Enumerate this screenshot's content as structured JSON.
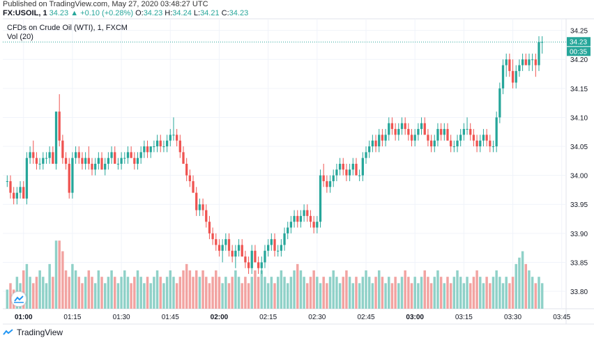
{
  "header": {
    "published": "Published on TradingView.com, May 27, 2020 03:48:27 UTC",
    "symbol": "FX:USOIL, 1",
    "last": "34.23",
    "change": "▲ +0.10 (+0.28%)",
    "o_label": "O:",
    "o_value": "34.23",
    "h_label": "H:",
    "h_value": "34.24",
    "l_label": "L:",
    "l_value": "34.21",
    "c_label": "C:",
    "c_value": "34.23"
  },
  "legend": {
    "title": "CFDs on Crude Oil (WTI), 1, FXCM",
    "volume": "Vol (20)"
  },
  "footer": {
    "brand": "TradingView"
  },
  "colors": {
    "up": "#26a69a",
    "down": "#ef5350",
    "up_vol": "#8fd1c8",
    "down_vol": "#f2a3a1",
    "grid": "#f0f3fa",
    "price_line": "#26a69a"
  },
  "chart_data": {
    "type": "candlestick",
    "title": "CFDs on Crude Oil (WTI), 1, FXCM",
    "interval": "1 minute",
    "ylim": [
      33.77,
      34.27
    ],
    "y_ticks": [
      "34.25",
      "34.20",
      "34.15",
      "34.10",
      "34.05",
      "34.00",
      "33.95",
      "33.90",
      "33.85",
      "33.80"
    ],
    "x_ticks": [
      {
        "label": "01:00",
        "index": 5,
        "bold": true
      },
      {
        "label": "01:15",
        "index": 20,
        "bold": false
      },
      {
        "label": "01:30",
        "index": 35,
        "bold": false
      },
      {
        "label": "01:45",
        "index": 50,
        "bold": false
      },
      {
        "label": "02:00",
        "index": 65,
        "bold": true
      },
      {
        "label": "02:15",
        "index": 80,
        "bold": false
      },
      {
        "label": "02:30",
        "index": 95,
        "bold": false
      },
      {
        "label": "02:45",
        "index": 110,
        "bold": false
      },
      {
        "label": "03:00",
        "index": 125,
        "bold": true
      },
      {
        "label": "03:15",
        "index": 140,
        "bold": false
      },
      {
        "label": "03:30",
        "index": 155,
        "bold": false
      },
      {
        "label": "03:45",
        "index": 170,
        "bold": false
      }
    ],
    "last_price": "34.23",
    "countdown": "00:35",
    "candles": [
      [
        33.99,
        34.0,
        33.98,
        33.99
      ],
      [
        33.99,
        34.0,
        33.96,
        33.97
      ],
      [
        33.97,
        33.98,
        33.95,
        33.96
      ],
      [
        33.96,
        33.98,
        33.95,
        33.97
      ],
      [
        33.97,
        33.99,
        33.96,
        33.98
      ],
      [
        33.98,
        33.99,
        33.96,
        33.96
      ],
      [
        33.96,
        34.04,
        33.95,
        34.03
      ],
      [
        34.03,
        34.05,
        34.02,
        34.04
      ],
      [
        34.04,
        34.06,
        34.02,
        34.03
      ],
      [
        34.03,
        34.04,
        34.01,
        34.02
      ],
      [
        34.02,
        34.03,
        34.01,
        34.02
      ],
      [
        34.02,
        34.04,
        34.01,
        34.03
      ],
      [
        34.03,
        34.04,
        34.02,
        34.03
      ],
      [
        34.03,
        34.05,
        34.02,
        34.04
      ],
      [
        34.04,
        34.05,
        34.02,
        34.02
      ],
      [
        34.02,
        34.11,
        34.01,
        34.11
      ],
      [
        34.11,
        34.14,
        34.05,
        34.06
      ],
      [
        34.06,
        34.07,
        34.02,
        34.03
      ],
      [
        34.03,
        34.04,
        34.01,
        34.02
      ],
      [
        34.02,
        34.03,
        33.96,
        33.97
      ],
      [
        33.97,
        34.04,
        33.96,
        34.03
      ],
      [
        34.03,
        34.05,
        34.02,
        34.04
      ],
      [
        34.04,
        34.05,
        34.02,
        34.03
      ],
      [
        34.03,
        34.04,
        34.01,
        34.02
      ],
      [
        34.02,
        34.04,
        34.01,
        34.03
      ],
      [
        34.03,
        34.05,
        34.01,
        34.02
      ],
      [
        34.02,
        34.03,
        34.0,
        34.01
      ],
      [
        34.01,
        34.03,
        34.0,
        34.02
      ],
      [
        34.02,
        34.04,
        34.01,
        34.03
      ],
      [
        34.03,
        34.04,
        34.01,
        34.01
      ],
      [
        34.01,
        34.03,
        34.0,
        34.02
      ],
      [
        34.02,
        34.04,
        34.01,
        34.03
      ],
      [
        34.03,
        34.05,
        34.02,
        34.04
      ],
      [
        34.04,
        34.05,
        34.02,
        34.02
      ],
      [
        34.02,
        34.03,
        34.01,
        34.02
      ],
      [
        34.02,
        34.04,
        34.01,
        34.03
      ],
      [
        34.03,
        34.04,
        34.02,
        34.03
      ],
      [
        34.03,
        34.05,
        34.02,
        34.04
      ],
      [
        34.04,
        34.05,
        34.03,
        34.03
      ],
      [
        34.03,
        34.04,
        34.01,
        34.02
      ],
      [
        34.02,
        34.04,
        34.01,
        34.03
      ],
      [
        34.03,
        34.05,
        34.02,
        34.04
      ],
      [
        34.04,
        34.06,
        34.03,
        34.05
      ],
      [
        34.05,
        34.06,
        34.03,
        34.04
      ],
      [
        34.04,
        34.05,
        34.03,
        34.05
      ],
      [
        34.05,
        34.06,
        34.04,
        34.05
      ],
      [
        34.05,
        34.07,
        34.04,
        34.06
      ],
      [
        34.06,
        34.07,
        34.04,
        34.05
      ],
      [
        34.05,
        34.06,
        34.04,
        34.05
      ],
      [
        34.05,
        34.07,
        34.04,
        34.06
      ],
      [
        34.06,
        34.08,
        34.05,
        34.07
      ],
      [
        34.07,
        34.1,
        34.06,
        34.07
      ],
      [
        34.07,
        34.08,
        34.05,
        34.06
      ],
      [
        34.06,
        34.07,
        34.03,
        34.04
      ],
      [
        34.04,
        34.05,
        34.02,
        34.02
      ],
      [
        34.02,
        34.03,
        33.99,
        34.0
      ],
      [
        34.0,
        34.01,
        33.98,
        33.99
      ],
      [
        33.99,
        34.0,
        33.97,
        33.97
      ],
      [
        33.97,
        33.98,
        33.93,
        33.94
      ],
      [
        33.94,
        33.96,
        33.93,
        33.95
      ],
      [
        33.95,
        33.96,
        33.93,
        33.94
      ],
      [
        33.94,
        33.95,
        33.91,
        33.92
      ],
      [
        33.92,
        33.93,
        33.89,
        33.9
      ],
      [
        33.9,
        33.91,
        33.88,
        33.89
      ],
      [
        33.89,
        33.9,
        33.87,
        33.88
      ],
      [
        33.88,
        33.89,
        33.86,
        33.87
      ],
      [
        33.87,
        33.89,
        33.85,
        33.88
      ],
      [
        33.88,
        33.9,
        33.87,
        33.89
      ],
      [
        33.89,
        33.9,
        33.86,
        33.87
      ],
      [
        33.87,
        33.88,
        33.85,
        33.86
      ],
      [
        33.86,
        33.88,
        33.84,
        33.87
      ],
      [
        33.87,
        33.89,
        33.86,
        33.88
      ],
      [
        33.88,
        33.89,
        33.86,
        33.86
      ],
      [
        33.86,
        33.87,
        33.84,
        33.85
      ],
      [
        33.85,
        33.86,
        33.83,
        33.84
      ],
      [
        33.84,
        33.88,
        33.83,
        33.87
      ],
      [
        33.87,
        33.88,
        33.85,
        33.85
      ],
      [
        33.85,
        33.86,
        33.83,
        33.84
      ],
      [
        33.84,
        33.86,
        33.83,
        33.85
      ],
      [
        33.85,
        33.88,
        33.84,
        33.87
      ],
      [
        33.87,
        33.89,
        33.86,
        33.88
      ],
      [
        33.88,
        33.9,
        33.87,
        33.89
      ],
      [
        33.89,
        33.9,
        33.86,
        33.87
      ],
      [
        33.87,
        33.88,
        33.86,
        33.87
      ],
      [
        33.87,
        33.89,
        33.86,
        33.88
      ],
      [
        33.88,
        33.91,
        33.87,
        33.9
      ],
      [
        33.9,
        33.92,
        33.89,
        33.91
      ],
      [
        33.91,
        33.93,
        33.9,
        33.92
      ],
      [
        33.92,
        33.94,
        33.91,
        33.93
      ],
      [
        33.93,
        33.94,
        33.91,
        33.92
      ],
      [
        33.92,
        33.94,
        33.91,
        33.93
      ],
      [
        33.93,
        33.95,
        33.92,
        33.94
      ],
      [
        33.94,
        33.95,
        33.92,
        33.93
      ],
      [
        33.93,
        33.94,
        33.91,
        33.92
      ],
      [
        33.92,
        33.93,
        33.9,
        33.91
      ],
      [
        33.91,
        33.93,
        33.9,
        33.92
      ],
      [
        33.92,
        34.01,
        33.91,
        34.0
      ],
      [
        34.0,
        34.02,
        33.98,
        33.99
      ],
      [
        33.99,
        34.0,
        33.97,
        33.98
      ],
      [
        33.98,
        34.0,
        33.97,
        33.99
      ],
      [
        33.99,
        34.01,
        33.98,
        34.0
      ],
      [
        34.0,
        34.02,
        33.99,
        34.01
      ],
      [
        34.01,
        34.03,
        34.0,
        34.02
      ],
      [
        34.02,
        34.03,
        34.0,
        34.01
      ],
      [
        34.01,
        34.02,
        33.99,
        34.0
      ],
      [
        34.0,
        34.02,
        33.99,
        34.01
      ],
      [
        34.01,
        34.03,
        34.0,
        34.02
      ],
      [
        34.02,
        34.03,
        34.0,
        34.0
      ],
      [
        34.0,
        34.01,
        33.99,
        34.0
      ],
      [
        34.0,
        34.04,
        33.99,
        34.03
      ],
      [
        34.03,
        34.05,
        34.02,
        34.04
      ],
      [
        34.04,
        34.06,
        34.03,
        34.05
      ],
      [
        34.05,
        34.07,
        34.04,
        34.06
      ],
      [
        34.06,
        34.07,
        34.04,
        34.05
      ],
      [
        34.05,
        34.08,
        34.04,
        34.07
      ],
      [
        34.07,
        34.08,
        34.05,
        34.06
      ],
      [
        34.06,
        34.08,
        34.05,
        34.07
      ],
      [
        34.07,
        34.1,
        34.06,
        34.09
      ],
      [
        34.09,
        34.1,
        34.07,
        34.08
      ],
      [
        34.08,
        34.09,
        34.06,
        34.07
      ],
      [
        34.07,
        34.09,
        34.06,
        34.08
      ],
      [
        34.08,
        34.1,
        34.07,
        34.09
      ],
      [
        34.09,
        34.1,
        34.07,
        34.08
      ],
      [
        34.08,
        34.09,
        34.06,
        34.07
      ],
      [
        34.07,
        34.08,
        34.05,
        34.06
      ],
      [
        34.06,
        34.08,
        34.05,
        34.07
      ],
      [
        34.07,
        34.09,
        34.06,
        34.08
      ],
      [
        34.08,
        34.1,
        34.07,
        34.09
      ],
      [
        34.09,
        34.1,
        34.07,
        34.07
      ],
      [
        34.07,
        34.08,
        34.05,
        34.06
      ],
      [
        34.06,
        34.07,
        34.04,
        34.05
      ],
      [
        34.05,
        34.07,
        34.04,
        34.06
      ],
      [
        34.06,
        34.09,
        34.05,
        34.08
      ],
      [
        34.08,
        34.09,
        34.06,
        34.07
      ],
      [
        34.07,
        34.09,
        34.06,
        34.08
      ],
      [
        34.08,
        34.09,
        34.06,
        34.06
      ],
      [
        34.06,
        34.07,
        34.04,
        34.05
      ],
      [
        34.05,
        34.06,
        34.04,
        34.05
      ],
      [
        34.05,
        34.07,
        34.04,
        34.06
      ],
      [
        34.06,
        34.08,
        34.05,
        34.07
      ],
      [
        34.07,
        34.09,
        34.06,
        34.08
      ],
      [
        34.08,
        34.1,
        34.07,
        34.08
      ],
      [
        34.08,
        34.09,
        34.06,
        34.07
      ],
      [
        34.07,
        34.08,
        34.05,
        34.06
      ],
      [
        34.06,
        34.07,
        34.04,
        34.05
      ],
      [
        34.05,
        34.07,
        34.04,
        34.06
      ],
      [
        34.06,
        34.08,
        34.05,
        34.07
      ],
      [
        34.07,
        34.08,
        34.05,
        34.06
      ],
      [
        34.06,
        34.07,
        34.04,
        34.05
      ],
      [
        34.05,
        34.06,
        34.04,
        34.05
      ],
      [
        34.05,
        34.11,
        34.04,
        34.1
      ],
      [
        34.1,
        34.16,
        34.09,
        34.15
      ],
      [
        34.15,
        34.2,
        34.14,
        34.19
      ],
      [
        34.19,
        34.21,
        34.17,
        34.2
      ],
      [
        34.2,
        34.21,
        34.17,
        34.18
      ],
      [
        34.18,
        34.2,
        34.15,
        34.16
      ],
      [
        34.16,
        34.19,
        34.15,
        34.18
      ],
      [
        34.18,
        34.2,
        34.17,
        34.19
      ],
      [
        34.19,
        34.21,
        34.18,
        34.2
      ],
      [
        34.2,
        34.21,
        34.19,
        34.19
      ],
      [
        34.19,
        34.21,
        34.18,
        34.2
      ],
      [
        34.2,
        34.21,
        34.18,
        34.2
      ],
      [
        34.2,
        34.21,
        34.17,
        34.19
      ],
      [
        34.19,
        34.24,
        34.18,
        34.23
      ],
      [
        34.23,
        34.24,
        34.21,
        34.23
      ]
    ],
    "volumes": [
      3,
      4,
      3,
      5,
      4,
      6,
      7,
      5,
      4,
      5,
      6,
      5,
      4,
      7,
      5,
      8,
      8,
      9,
      6,
      5,
      7,
      6,
      5,
      4,
      5,
      6,
      5,
      4,
      6,
      5,
      4,
      5,
      6,
      5,
      4,
      5,
      6,
      5,
      4,
      5,
      6,
      5,
      4,
      5,
      4,
      5,
      6,
      5,
      4,
      5,
      6,
      5,
      4,
      5,
      6,
      7,
      6,
      5,
      6,
      5,
      6,
      5,
      4,
      5,
      6,
      5,
      4,
      5,
      4,
      5,
      6,
      5,
      4,
      5,
      4,
      5,
      6,
      5,
      6,
      5,
      4,
      5,
      4,
      5,
      6,
      5,
      4,
      5,
      6,
      7,
      6,
      5,
      4,
      5,
      6,
      5,
      4,
      5,
      4,
      5,
      6,
      5,
      4,
      5,
      6,
      5,
      4,
      5,
      4,
      5,
      6,
      5,
      4,
      5,
      6,
      5,
      4,
      5,
      4,
      5,
      4,
      5,
      6,
      5,
      4,
      5,
      4,
      5,
      6,
      5,
      4,
      5,
      6,
      5,
      4,
      5,
      4,
      5,
      6,
      5,
      4,
      5,
      4,
      5,
      6,
      5,
      4,
      5,
      4,
      5,
      6,
      5,
      4,
      5,
      4,
      5,
      7,
      8,
      9,
      7,
      6,
      5,
      4,
      5,
      4,
      5,
      4,
      5,
      4,
      5
    ]
  }
}
